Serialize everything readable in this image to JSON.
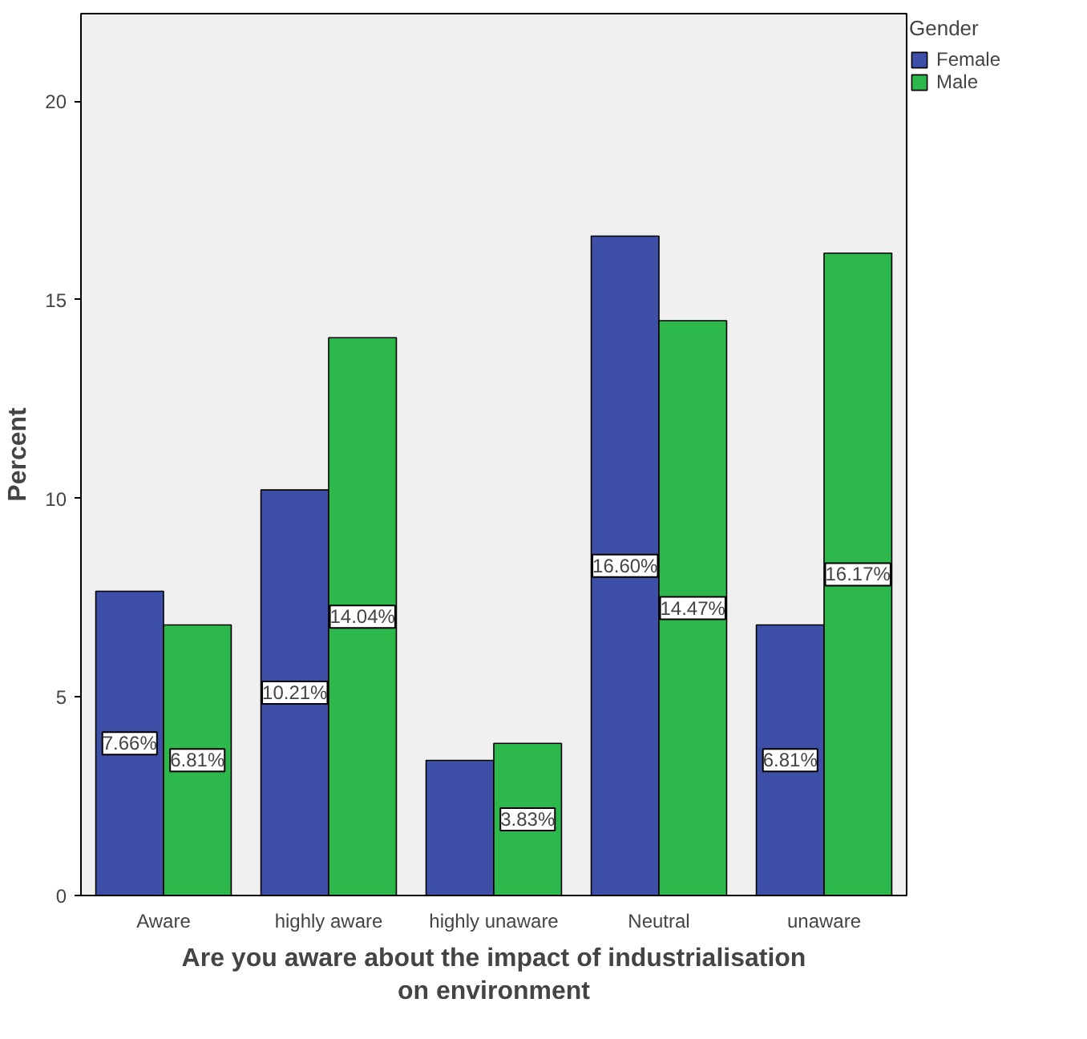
{
  "chart_data": {
    "type": "bar",
    "xlabel": "Are you aware about the impact of industrialisation\non environment",
    "ylabel": "Percent",
    "legend_title": "Gender",
    "categories": [
      "Aware",
      "highly aware",
      "highly unaware",
      "Neutral",
      "unaware"
    ],
    "series": [
      {
        "name": "Female",
        "color": "#3e4fa8",
        "values": [
          7.66,
          10.21,
          3.4,
          16.6,
          6.81
        ],
        "value_labels": [
          "7.66%",
          "10.21%",
          null,
          "16.60%",
          "6.81%"
        ]
      },
      {
        "name": "Male",
        "color": "#2db84c",
        "values": [
          6.81,
          14.04,
          3.83,
          14.47,
          16.17
        ],
        "value_labels": [
          "6.81%",
          "14.04%",
          "3.83%",
          "14.47%",
          "16.17%"
        ]
      }
    ],
    "ylim": [
      0,
      22.2
    ],
    "yticks": [
      0,
      5,
      10,
      15,
      20
    ],
    "grid": false,
    "legend": "right"
  }
}
